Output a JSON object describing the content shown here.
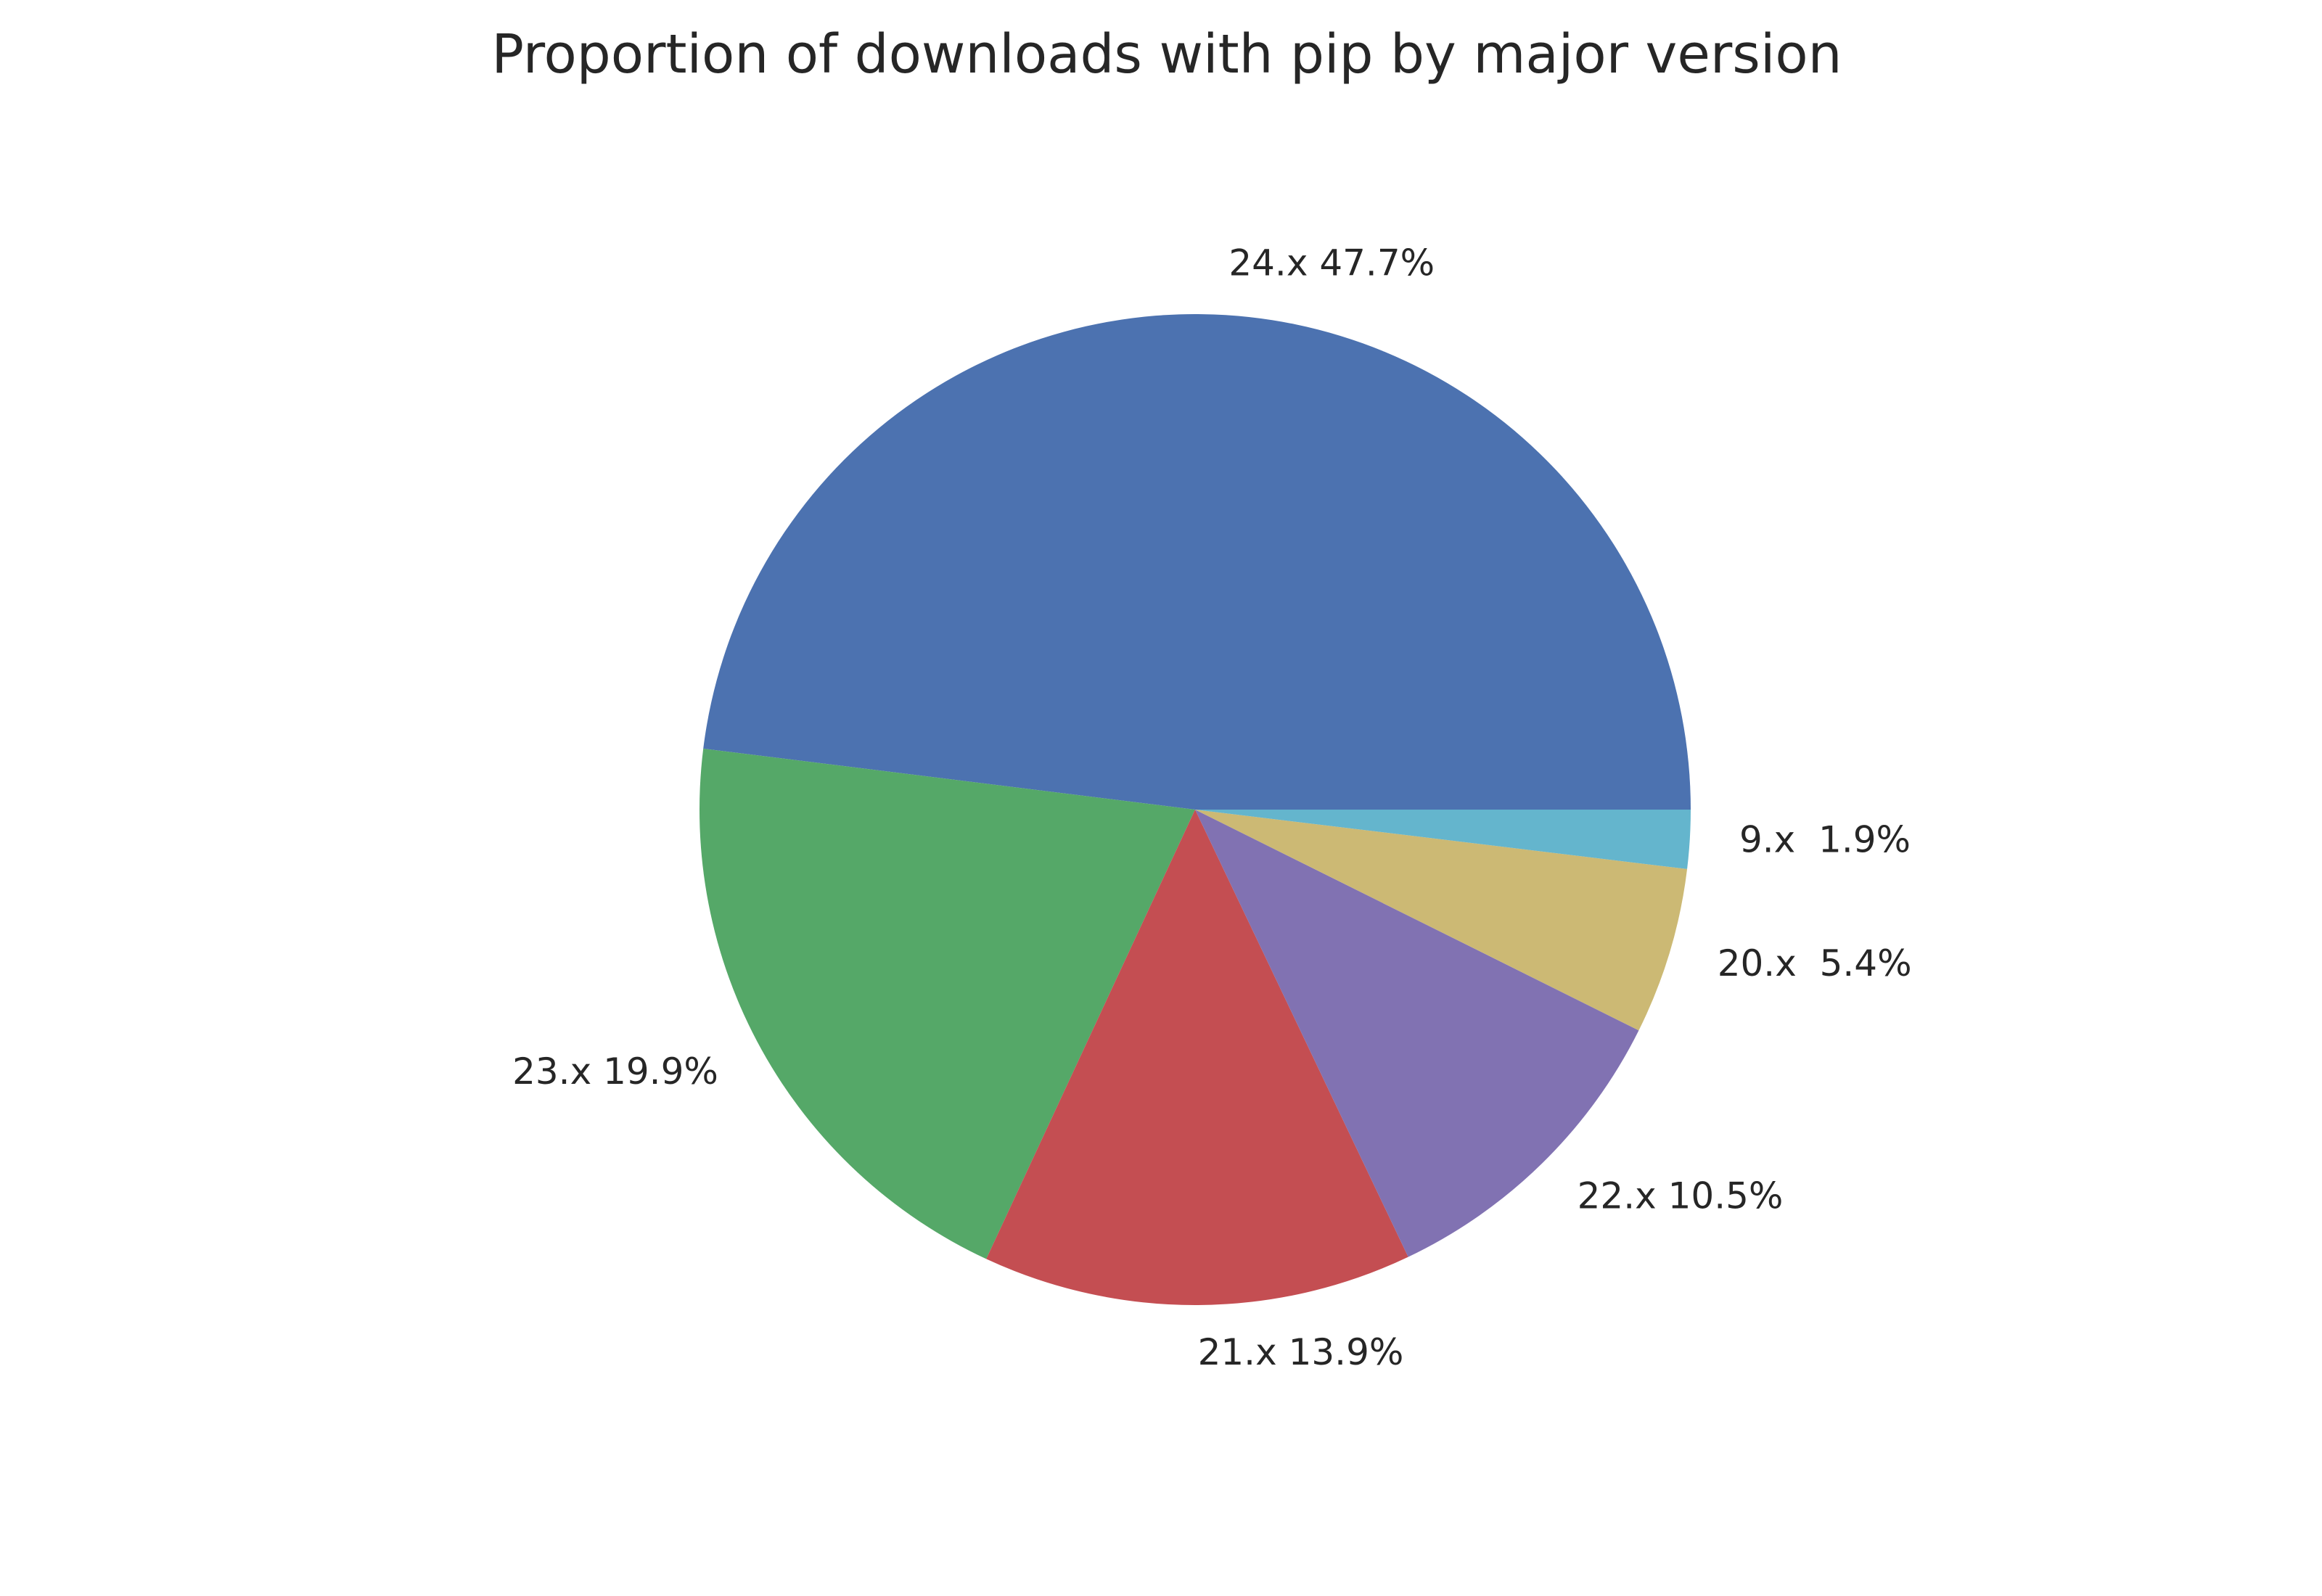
{
  "chart_data": {
    "type": "pie",
    "title": "Proportion of downloads with pip by major version",
    "start_angle_deg": 0,
    "direction": "counterclockwise",
    "slices": [
      {
        "category": "24.x",
        "value": 47.7,
        "label": "24.x 47.7%",
        "color": "#4C72B0"
      },
      {
        "category": "23.x",
        "value": 19.9,
        "label": "23.x 19.9%",
        "color": "#55A868"
      },
      {
        "category": "21.x",
        "value": 13.9,
        "label": "21.x 13.9%",
        "color": "#C44E52"
      },
      {
        "category": "22.x",
        "value": 10.5,
        "label": "22.x 10.5%",
        "color": "#8172B2"
      },
      {
        "category": "20.x",
        "value": 5.4,
        "label": "20.x  5.4%",
        "color": "#CCB974"
      },
      {
        "category": "9.x",
        "value": 1.9,
        "label": "9.x  1.9%",
        "color": "#64B5CD"
      }
    ]
  }
}
